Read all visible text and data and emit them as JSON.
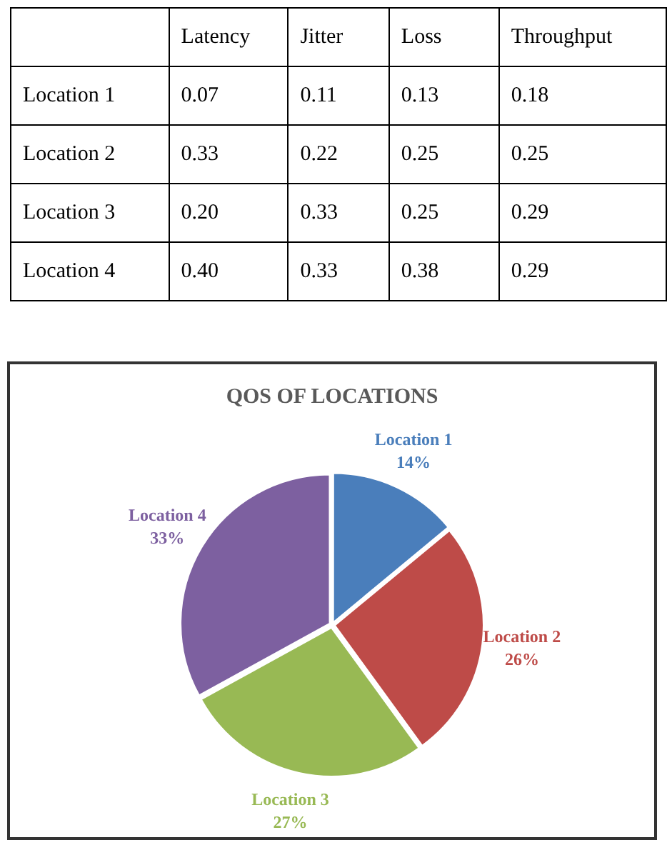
{
  "chart_data": [
    {
      "type": "heatmap",
      "categories": [
        "Latency",
        "Jitter",
        "Loss",
        "Throughput"
      ],
      "y_categories": [
        "Location 1",
        "Location 2",
        "Location 3",
        "Location 4"
      ],
      "cells": [
        [
          0.07,
          0.11,
          0.13,
          0.18
        ],
        [
          0.33,
          0.22,
          0.25,
          0.25
        ],
        [
          0.2,
          0.33,
          0.25,
          0.29
        ],
        [
          0.4,
          0.33,
          0.38,
          0.29
        ]
      ],
      "data_labels": true,
      "cell_labels": [
        [
          "0.07",
          "0.11",
          "0.13",
          "0.18"
        ],
        [
          "0.33",
          "0.22",
          "0.25",
          "0.25"
        ],
        [
          "0.20",
          "0.33",
          "0.25",
          "0.29"
        ],
        [
          "0.40",
          "0.33",
          "0.38",
          "0.29"
        ]
      ]
    },
    {
      "type": "pie",
      "title": "QOS OF LOCATIONS",
      "categories": [
        "Location 1",
        "Location 2",
        "Location 3",
        "Location 4"
      ],
      "values": [
        14,
        26,
        27,
        33
      ],
      "value_labels": [
        "14%",
        "26%",
        "27%",
        "33%"
      ],
      "colors": [
        "#4a7ebb",
        "#be4b48",
        "#98b954",
        "#7d60a0"
      ]
    }
  ]
}
